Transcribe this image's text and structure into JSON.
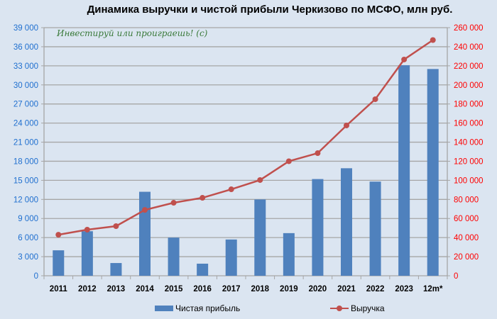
{
  "title": "Динамика выручки и чистой прибыли Черкизово по МСФО, млн руб.",
  "watermark": "Инвестируй или проиграешь! (с)",
  "colors": {
    "bar": "#4f81bd",
    "line": "#c0504d",
    "left_axis": "#1f6fcf",
    "right_axis": "#ff0000",
    "background": "#dbe5f1",
    "grid": "#a6a6a6"
  },
  "legend": {
    "bar_label": "Чистая прибыль",
    "line_label": "Выручка"
  },
  "chart_data": {
    "type": "bar+line",
    "title": "Динамика выручки и чистой прибыли Черкизово по МСФО, млн руб.",
    "categories": [
      "2011",
      "2012",
      "2013",
      "2014",
      "2015",
      "2016",
      "2017",
      "2018",
      "2019",
      "2020",
      "2021",
      "2022",
      "2023",
      "12m*"
    ],
    "series": [
      {
        "name": "Чистая прибыль",
        "type": "bar",
        "axis": "left",
        "values": [
          4000,
          7000,
          2000,
          13200,
          6000,
          1900,
          5700,
          12000,
          6700,
          15200,
          16900,
          14800,
          33100,
          32500
        ]
      },
      {
        "name": "Выручка",
        "type": "line",
        "axis": "right",
        "values": [
          43000,
          48300,
          52000,
          69000,
          76500,
          81700,
          90600,
          100300,
          120000,
          128500,
          157500,
          185000,
          226600,
          247000
        ]
      }
    ],
    "left_axis": {
      "ylim": [
        0,
        39000
      ],
      "ticks": [
        "0",
        "3 000",
        "6 000",
        "9 000",
        "12 000",
        "15 000",
        "18 000",
        "21 000",
        "24 000",
        "27 000",
        "30 000",
        "33 000",
        "36 000",
        "39 000"
      ]
    },
    "right_axis": {
      "ylim": [
        0,
        260000
      ],
      "ticks": [
        "0",
        "20 000",
        "40 000",
        "60 000",
        "80 000",
        "100 000",
        "120 000",
        "140 000",
        "160 000",
        "180 000",
        "200 000",
        "220 000",
        "240 000",
        "260 000"
      ]
    },
    "grid": true,
    "legend_position": "bottom"
  }
}
